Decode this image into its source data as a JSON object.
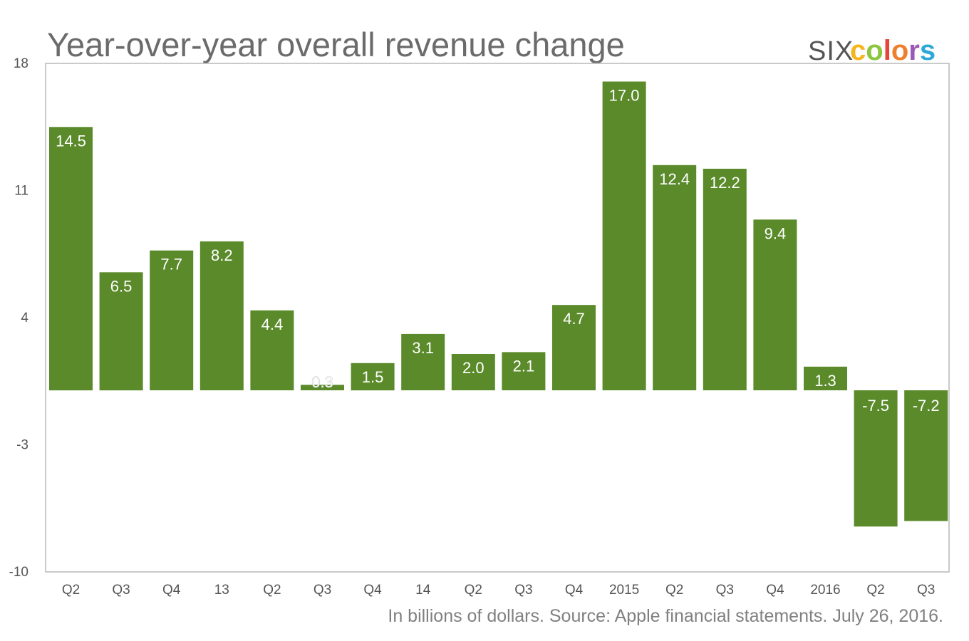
{
  "chart_data": {
    "type": "bar",
    "title": "Year-over-year overall revenue change",
    "footnote": "In billions of dollars. Source: Apple financial statements. July 26, 2016.",
    "categories": [
      "Q2",
      "Q3",
      "Q4",
      "13",
      "Q2",
      "Q3",
      "Q4",
      "14",
      "Q2",
      "Q3",
      "Q4",
      "2015",
      "Q2",
      "Q3",
      "Q4",
      "2016",
      "Q2",
      "Q3"
    ],
    "values": [
      14.5,
      6.5,
      7.7,
      8.2,
      4.4,
      0.3,
      1.5,
      3.1,
      2.0,
      2.1,
      4.7,
      17.0,
      12.4,
      12.2,
      9.4,
      1.3,
      -7.5,
      -7.2
    ],
    "data_labels": [
      "14.5",
      "6.5",
      "7.7",
      "8.2",
      "4.4",
      "0.3",
      "1.5",
      "3.1",
      "2.0",
      "2.1",
      "4.7",
      "17.0",
      "12.4",
      "12.2",
      "9.4",
      "1.3",
      "-7.5",
      "-7.2"
    ],
    "yticks": [
      18,
      11,
      4,
      -3,
      -10
    ],
    "ytick_labels": [
      "18",
      "11",
      "4",
      "-3",
      "-10"
    ],
    "ylim": [
      -10,
      18
    ],
    "xlabel": "",
    "ylabel": "",
    "grid": false,
    "legend": "none",
    "colors": {
      "bar": "#5a8a2a",
      "frame": "#b8b8b8"
    }
  },
  "logo": {
    "part1": "SIX",
    "part2_letters": [
      "c",
      "o",
      "l",
      "o",
      "r",
      "s"
    ],
    "part2_colors": [
      "#f5b51c",
      "#8cc63f",
      "#e8443a",
      "#f07f2d",
      "#9b59b6",
      "#2fa8d8"
    ]
  }
}
